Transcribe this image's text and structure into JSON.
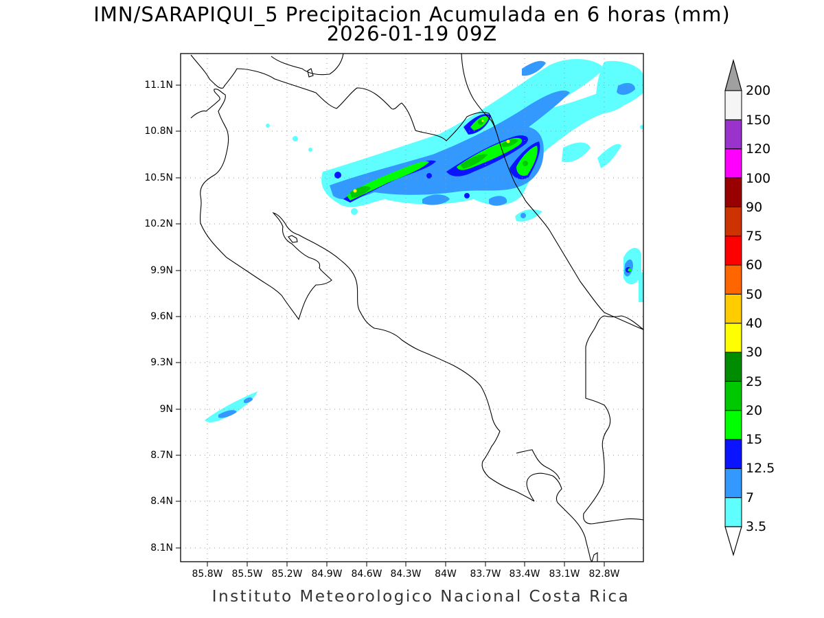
{
  "title": {
    "line1": "IMN/SARAPIQUI_5 Precipitacion Acumulada en 6 horas (mm)",
    "line2": "2026-01-19 09Z"
  },
  "footer": "Instituto Meteorologico Nacional Costa Rica",
  "axes": {
    "lat_labels": [
      "11.1N",
      "10.8N",
      "10.5N",
      "10.2N",
      "9.9N",
      "9.6N",
      "9.3N",
      "9N",
      "8.7N",
      "8.4N",
      "8.1N"
    ],
    "lon_labels": [
      "85.8W",
      "85.5W",
      "85.2W",
      "84.9W",
      "84.6W",
      "84.3W",
      "84W",
      "83.7W",
      "83.4W",
      "83.1W",
      "82.8W"
    ]
  },
  "colorbar": {
    "levels": [
      "3.5",
      "7",
      "12.5",
      "15",
      "20",
      "25",
      "30",
      "40",
      "50",
      "60",
      "75",
      "90",
      "100",
      "120",
      "150",
      "200"
    ],
    "colors": [
      "#5FFFFF",
      "#3399FF",
      "#0A14FF",
      "#00FF00",
      "#00C800",
      "#008C00",
      "#FFFF00",
      "#FFCC00",
      "#FF6600",
      "#FF0000",
      "#CC3300",
      "#990000",
      "#FF00FF",
      "#9933CC",
      "#F5F5F5",
      "#A0A0A0"
    ]
  },
  "precipitation_colors": {
    "light": "#5FFFFF",
    "moderate": "#3399FF",
    "heavy": "#0A14FF",
    "very_heavy": "#00FF00",
    "intense": "#00C800",
    "peak": "#FFFF00"
  }
}
